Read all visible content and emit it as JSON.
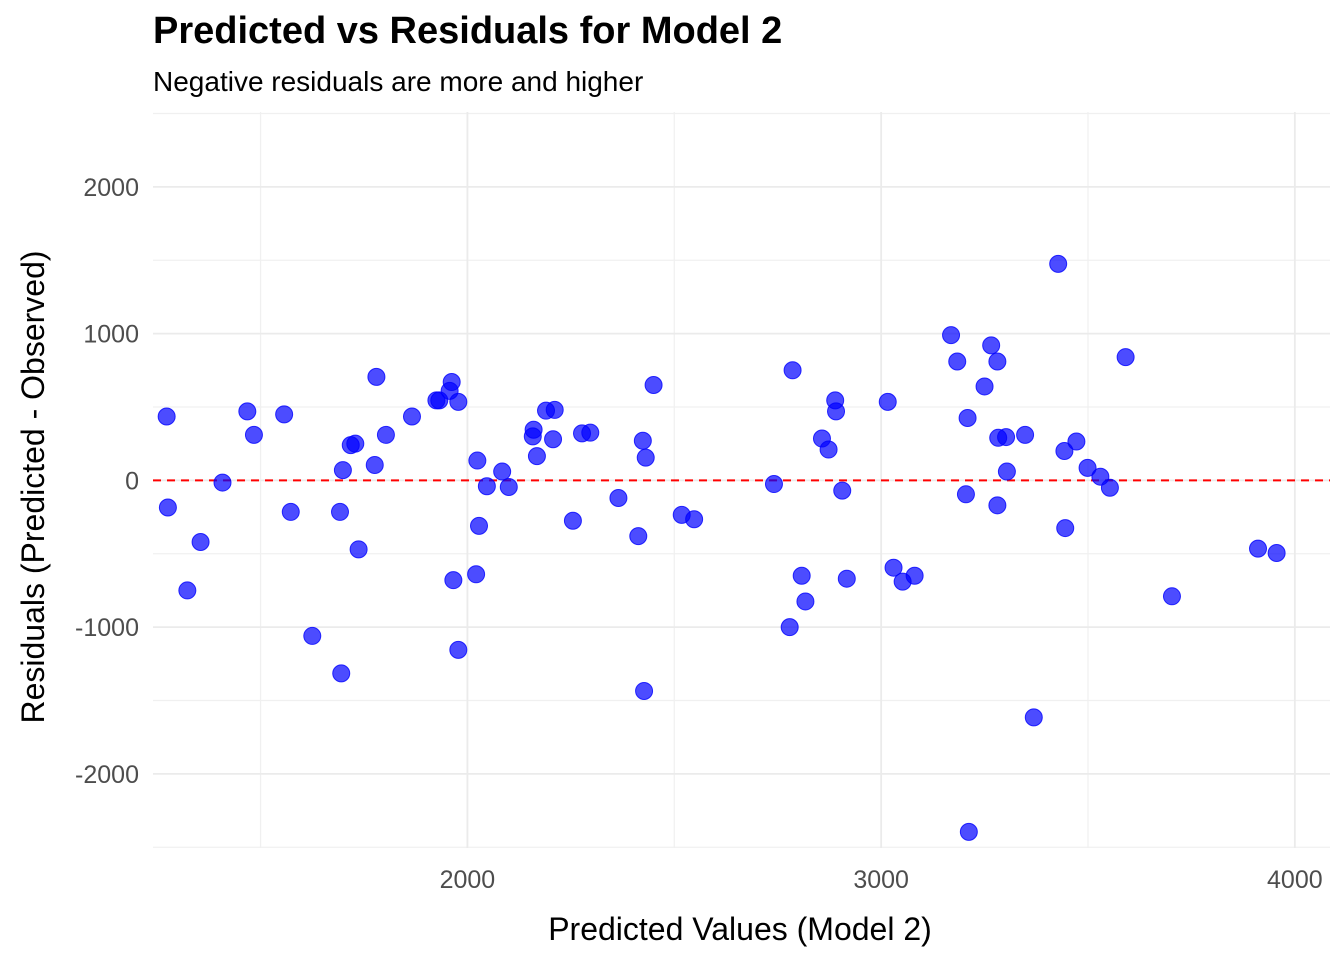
{
  "chart_data": {
    "type": "scatter",
    "title": "Predicted vs Residuals for Model 2",
    "subtitle": "Negative residuals are more and higher",
    "xlabel": "Predicted Values (Model 2)",
    "ylabel": "Residuals (Predicted - Observed)",
    "xlim": [
      1240,
      4085
    ],
    "ylim": [
      -2505,
      2510
    ],
    "x_ticks": [
      2000,
      3000,
      4000
    ],
    "y_ticks": [
      -2000,
      -1000,
      0,
      1000,
      2000
    ],
    "x_tick_labels": [
      "2000",
      "3000",
      "4000"
    ],
    "y_tick_labels": [
      "-2000",
      "-1000",
      "0",
      "1000",
      "2000"
    ],
    "reference_line": {
      "y": 0,
      "color": "#ff0000",
      "style": "dashed"
    },
    "point_color": "#0000ff",
    "grid": true,
    "points": [
      {
        "x": 1273,
        "y": 435
      },
      {
        "x": 1276,
        "y": -185
      },
      {
        "x": 1323,
        "y": -750
      },
      {
        "x": 1355,
        "y": -420
      },
      {
        "x": 1408,
        "y": -15
      },
      {
        "x": 1468,
        "y": 470
      },
      {
        "x": 1484,
        "y": 310
      },
      {
        "x": 1557,
        "y": 450
      },
      {
        "x": 1573,
        "y": -215
      },
      {
        "x": 1625,
        "y": -1060
      },
      {
        "x": 1692,
        "y": -215
      },
      {
        "x": 1695,
        "y": -1315
      },
      {
        "x": 1699,
        "y": 70
      },
      {
        "x": 1718,
        "y": 240
      },
      {
        "x": 1729,
        "y": 250
      },
      {
        "x": 1737,
        "y": -470
      },
      {
        "x": 1776,
        "y": 105
      },
      {
        "x": 1780,
        "y": 705
      },
      {
        "x": 1803,
        "y": 310
      },
      {
        "x": 1866,
        "y": 435
      },
      {
        "x": 1925,
        "y": 545
      },
      {
        "x": 1932,
        "y": 545
      },
      {
        "x": 1957,
        "y": 610
      },
      {
        "x": 1962,
        "y": 670
      },
      {
        "x": 1966,
        "y": -680
      },
      {
        "x": 1978,
        "y": 535
      },
      {
        "x": 1978,
        "y": -1155
      },
      {
        "x": 2021,
        "y": -640
      },
      {
        "x": 2024,
        "y": 135
      },
      {
        "x": 2028,
        "y": -310
      },
      {
        "x": 2047,
        "y": -40
      },
      {
        "x": 2084,
        "y": 60
      },
      {
        "x": 2100,
        "y": -45
      },
      {
        "x": 2158,
        "y": 300
      },
      {
        "x": 2160,
        "y": 345
      },
      {
        "x": 2168,
        "y": 165
      },
      {
        "x": 2190,
        "y": 475
      },
      {
        "x": 2207,
        "y": 280
      },
      {
        "x": 2211,
        "y": 480
      },
      {
        "x": 2255,
        "y": -275
      },
      {
        "x": 2277,
        "y": 320
      },
      {
        "x": 2297,
        "y": 325
      },
      {
        "x": 2365,
        "y": -120
      },
      {
        "x": 2413,
        "y": -380
      },
      {
        "x": 2424,
        "y": 270
      },
      {
        "x": 2427,
        "y": -1435
      },
      {
        "x": 2431,
        "y": 155
      },
      {
        "x": 2450,
        "y": 650
      },
      {
        "x": 2518,
        "y": -235
      },
      {
        "x": 2548,
        "y": -265
      },
      {
        "x": 2741,
        "y": -25
      },
      {
        "x": 2779,
        "y": -1000
      },
      {
        "x": 2786,
        "y": 750
      },
      {
        "x": 2808,
        "y": -650
      },
      {
        "x": 2817,
        "y": -825
      },
      {
        "x": 2857,
        "y": 285
      },
      {
        "x": 2873,
        "y": 210
      },
      {
        "x": 2889,
        "y": 545
      },
      {
        "x": 2891,
        "y": 470
      },
      {
        "x": 2906,
        "y": -70
      },
      {
        "x": 2917,
        "y": -670
      },
      {
        "x": 3016,
        "y": 535
      },
      {
        "x": 3030,
        "y": -595
      },
      {
        "x": 3052,
        "y": -690
      },
      {
        "x": 3081,
        "y": -650
      },
      {
        "x": 3169,
        "y": 990
      },
      {
        "x": 3184,
        "y": 810
      },
      {
        "x": 3205,
        "y": -95
      },
      {
        "x": 3209,
        "y": 425
      },
      {
        "x": 3212,
        "y": -2395
      },
      {
        "x": 3250,
        "y": 640
      },
      {
        "x": 3266,
        "y": 920
      },
      {
        "x": 3281,
        "y": 810
      },
      {
        "x": 3281,
        "y": -170
      },
      {
        "x": 3283,
        "y": 290
      },
      {
        "x": 3302,
        "y": 295
      },
      {
        "x": 3304,
        "y": 60
      },
      {
        "x": 3348,
        "y": 310
      },
      {
        "x": 3369,
        "y": -1615
      },
      {
        "x": 3428,
        "y": 1475
      },
      {
        "x": 3443,
        "y": 200
      },
      {
        "x": 3445,
        "y": -325
      },
      {
        "x": 3472,
        "y": 265
      },
      {
        "x": 3499,
        "y": 85
      },
      {
        "x": 3530,
        "y": 25
      },
      {
        "x": 3553,
        "y": -50
      },
      {
        "x": 3591,
        "y": 840
      },
      {
        "x": 3703,
        "y": -790
      },
      {
        "x": 3911,
        "y": -465
      },
      {
        "x": 3956,
        "y": -495
      }
    ]
  }
}
